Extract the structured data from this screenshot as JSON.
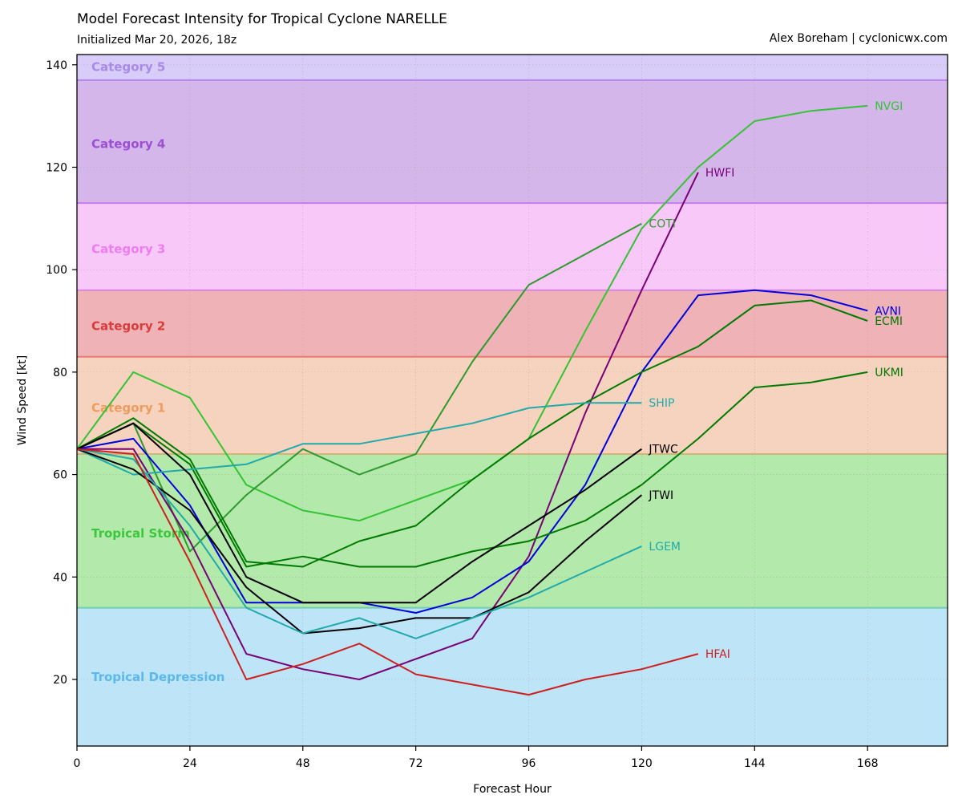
{
  "header": {
    "title": "Model Forecast Intensity for Tropical Cyclone NARELLE",
    "subtitle": "Initialized Mar 20, 2026, 18z",
    "credit": "Alex Boreham | cyclonicwx.com"
  },
  "chart_data": {
    "type": "line",
    "title": "Model Forecast Intensity for Tropical Cyclone NARELLE",
    "subtitle": "Initialized Mar 20, 2026, 18z",
    "xlabel": "Forecast Hour",
    "ylabel": "Wind Speed [kt]",
    "xlim": [
      0,
      185
    ],
    "ylim": [
      7,
      142
    ],
    "xticks": [
      0,
      24,
      48,
      72,
      96,
      120,
      144,
      168
    ],
    "yticks": [
      20,
      40,
      60,
      80,
      100,
      120,
      140
    ],
    "grid": true,
    "categories": [
      {
        "name": "Tropical Depression",
        "min": 7,
        "max": 34,
        "fill": "#bee5f7",
        "line": "#6fcfb0",
        "label_color": "#5bb8ea",
        "label_y": 20.5
      },
      {
        "name": "Tropical Storm",
        "min": 34,
        "max": 64,
        "fill": "#b4e9ac",
        "line": "#d6b377",
        "label_color": "#3cc63c",
        "label_y": 48.5
      },
      {
        "name": "Category 1",
        "min": 64,
        "max": 83,
        "fill": "#f6d3be",
        "line": "#e87a72",
        "label_color": "#f09b5e",
        "label_y": 73
      },
      {
        "name": "Category 2",
        "min": 83,
        "max": 96,
        "fill": "#efb3b7",
        "line": "#d687e3",
        "label_color": "#dc3c3c",
        "label_y": 89
      },
      {
        "name": "Category 3",
        "min": 96,
        "max": 113,
        "fill": "#f8c8f9",
        "line": "#c77be9",
        "label_color": "#ee7ef0",
        "label_y": 104
      },
      {
        "name": "Category 4",
        "min": 113,
        "max": 137,
        "fill": "#d4b6ea",
        "line": "#b884ee",
        "label_color": "#9b4fd4",
        "label_y": 124.5
      },
      {
        "name": "Category 5",
        "min": 137,
        "max": 142,
        "fill": "#d8ccf8",
        "line": null,
        "label_color": "#a88be8",
        "label_y": 139.6
      }
    ],
    "series": [
      {
        "name": "NVGI",
        "color": "#33c433",
        "x": [
          0,
          12,
          24,
          36,
          48,
          60,
          72,
          84,
          96,
          108,
          120,
          132,
          144,
          156,
          168
        ],
        "y": [
          65,
          80,
          75,
          58,
          53,
          51,
          55,
          59,
          67,
          88,
          108,
          120,
          129,
          131,
          132
        ]
      },
      {
        "name": "COTI",
        "color": "#2e9a2e",
        "x": [
          0,
          12,
          24,
          36,
          48,
          60,
          72,
          84,
          96,
          108,
          120
        ],
        "y": [
          65,
          70,
          45,
          56,
          65,
          60,
          64,
          82,
          97,
          103,
          109
        ]
      },
      {
        "name": "HWFI",
        "color": "#7a0077",
        "x": [
          0,
          12,
          24,
          36,
          48,
          60,
          72,
          84,
          96,
          108,
          120,
          132
        ],
        "y": [
          65,
          65,
          47,
          25,
          22,
          20,
          24,
          28,
          44,
          72,
          96,
          119
        ]
      },
      {
        "name": "AVNI",
        "color": "#0000dd",
        "x": [
          0,
          12,
          24,
          36,
          48,
          60,
          72,
          84,
          96,
          108,
          120,
          132,
          144,
          156,
          168
        ],
        "y": [
          65,
          67,
          54,
          35,
          35,
          35,
          33,
          36,
          43,
          58,
          80,
          95,
          96,
          95,
          92
        ]
      },
      {
        "name": "ECMI",
        "color": "#007a00",
        "x": [
          0,
          12,
          24,
          36,
          48,
          60,
          72,
          84,
          96,
          108,
          120,
          132,
          144,
          156,
          168
        ],
        "y": [
          65,
          71,
          63,
          43,
          42,
          47,
          50,
          59,
          67,
          74,
          80,
          85,
          93,
          94,
          90
        ]
      },
      {
        "name": "UKMI",
        "color": "#007a00",
        "x": [
          0,
          12,
          24,
          36,
          48,
          60,
          72,
          84,
          96,
          108,
          120,
          132,
          144,
          156,
          168
        ],
        "y": [
          65,
          70,
          62,
          42,
          44,
          42,
          42,
          45,
          47,
          51,
          58,
          67,
          77,
          78,
          80
        ]
      },
      {
        "name": "SHIP",
        "color": "#20aaaa",
        "x": [
          0,
          12,
          24,
          36,
          48,
          60,
          72,
          84,
          96,
          108,
          120
        ],
        "y": [
          65,
          60,
          61,
          62,
          66,
          66,
          68,
          70,
          73,
          74,
          74
        ]
      },
      {
        "name": "JTWC",
        "color": "#000000",
        "x": [
          0,
          12,
          24,
          36,
          48,
          60,
          72,
          84,
          96,
          108,
          120
        ],
        "y": [
          65,
          70,
          60,
          40,
          35,
          35,
          35,
          43,
          50,
          57,
          65
        ]
      },
      {
        "name": "JTWI",
        "color": "#000000",
        "x": [
          0,
          12,
          24,
          36,
          48,
          60,
          72,
          84,
          96,
          108,
          120
        ],
        "y": [
          65,
          61,
          53,
          38,
          29,
          30,
          32,
          32,
          37,
          47,
          56
        ]
      },
      {
        "name": "LGEM",
        "color": "#20aaaa",
        "x": [
          0,
          12,
          24,
          36,
          48,
          60,
          72,
          84,
          96,
          108,
          120
        ],
        "y": [
          65,
          63,
          50,
          34,
          29,
          32,
          28,
          32,
          36,
          41,
          46
        ]
      },
      {
        "name": "HFAI",
        "color": "#cc2020",
        "x": [
          0,
          12,
          24,
          36,
          48,
          60,
          72,
          84,
          96,
          108,
          120,
          132
        ],
        "y": [
          65,
          64,
          43,
          20,
          23,
          27,
          21,
          19,
          17,
          20,
          22,
          25
        ]
      }
    ]
  }
}
